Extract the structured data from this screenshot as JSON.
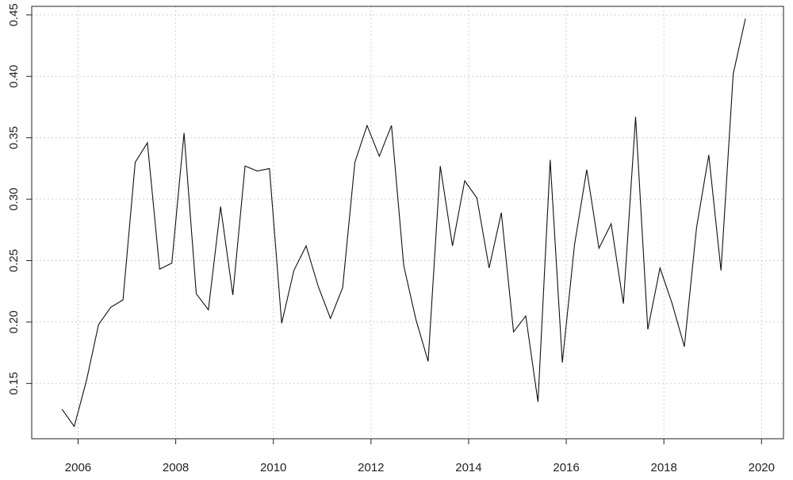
{
  "colors": {
    "background": "#ffffff",
    "line": "#111111",
    "grid": "#d0d0d0",
    "axis": "#222222",
    "text": "#222222"
  },
  "chart_data": {
    "type": "line",
    "title": "",
    "xlabel": "",
    "ylabel": "",
    "xlim": [
      2005.05,
      2020.45
    ],
    "ylim": [
      0.105,
      0.457
    ],
    "grid": true,
    "x_ticks": [
      2006,
      2008,
      2010,
      2012,
      2014,
      2016,
      2018,
      2020
    ],
    "x_tick_labels": [
      "2006",
      "2008",
      "2010",
      "2012",
      "2014",
      "2016",
      "2018",
      "2020"
    ],
    "y_ticks": [
      0.15,
      0.2,
      0.25,
      0.3,
      0.35,
      0.4,
      0.45
    ],
    "y_tick_labels": [
      "0.15",
      "0.20",
      "0.25",
      "0.30",
      "0.35",
      "0.40",
      "0.45"
    ],
    "series": [
      {
        "x": [
          2005.67,
          2005.92,
          2006.17,
          2006.42,
          2006.67,
          2006.92,
          2007.17,
          2007.42,
          2007.67,
          2007.92,
          2008.17,
          2008.42,
          2008.67,
          2008.92,
          2009.17,
          2009.42,
          2009.67,
          2009.92,
          2010.17,
          2010.42,
          2010.67,
          2010.92,
          2011.17,
          2011.42,
          2011.67,
          2011.92,
          2012.17,
          2012.42,
          2012.67,
          2012.92,
          2013.17,
          2013.42,
          2013.67,
          2013.92,
          2014.17,
          2014.42,
          2014.67,
          2014.92,
          2015.17,
          2015.42,
          2015.67,
          2015.92,
          2016.17,
          2016.42,
          2016.67,
          2016.92,
          2017.17,
          2017.42,
          2017.67,
          2017.92,
          2018.17,
          2018.42,
          2018.67,
          2018.92,
          2019.17,
          2019.42,
          2019.67
        ],
        "values": [
          0.129,
          0.115,
          0.152,
          0.198,
          0.212,
          0.218,
          0.33,
          0.346,
          0.243,
          0.248,
          0.354,
          0.223,
          0.21,
          0.294,
          0.222,
          0.327,
          0.323,
          0.325,
          0.199,
          0.242,
          0.262,
          0.229,
          0.203,
          0.228,
          0.33,
          0.36,
          0.335,
          0.36,
          0.246,
          0.202,
          0.168,
          0.327,
          0.262,
          0.315,
          0.301,
          0.244,
          0.289,
          0.192,
          0.205,
          0.135,
          0.332,
          0.167,
          0.263,
          0.324,
          0.26,
          0.28,
          0.215,
          0.367,
          0.194,
          0.244,
          0.215,
          0.18,
          0.277,
          0.336,
          0.242,
          0.402,
          0.447
        ]
      }
    ]
  }
}
